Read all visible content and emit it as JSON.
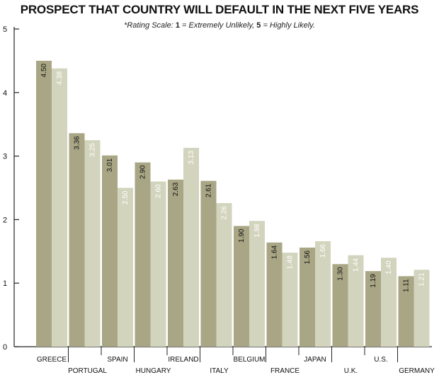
{
  "chart_data": {
    "type": "bar",
    "title": "PROSPECT THAT COUNTRY WILL DEFAULT IN THE NEXT FIVE YEARS",
    "subtitle": {
      "prefix": "*Rating Scale: ",
      "one": "1",
      "one_text": " = Extremely Unlikely, ",
      "five": "5",
      "five_text": " = Highly Likely."
    },
    "categories": [
      "GREECE",
      "PORTUGAL",
      "SPAIN",
      "HUNGARY",
      "IRELAND",
      "ITALY",
      "BELGIUM",
      "FRANCE",
      "JAPAN",
      "U.K.",
      "U.S.",
      "GERMANY"
    ],
    "series": [
      {
        "values": [
          4.5,
          3.36,
          3.01,
          2.9,
          2.63,
          2.61,
          1.9,
          1.64,
          1.56,
          1.3,
          1.19,
          1.11
        ]
      },
      {
        "values": [
          4.38,
          3.25,
          2.5,
          2.6,
          3.13,
          2.26,
          1.98,
          1.48,
          1.66,
          1.44,
          1.4,
          1.21
        ]
      }
    ],
    "data_labels": [
      [
        "4.50",
        "3.36",
        "3.01",
        "2.90",
        "2.63",
        "2.61",
        "1.90",
        "1.64",
        "1.56",
        "1.30",
        "1.19",
        "1.11"
      ],
      [
        "4.38",
        "3.25",
        "2.50",
        "2.60",
        "3.13",
        "2.26",
        "1.98",
        "1.48",
        "1.66",
        "1.44",
        "1.40",
        "1.21"
      ]
    ],
    "yticks": [
      "0",
      "1",
      "2",
      "3",
      "4",
      "5"
    ],
    "ylim": [
      0,
      5
    ],
    "grid": false,
    "colors": [
      "#a9a685",
      "#d3d4bd"
    ],
    "label_colors": [
      "#111111",
      "#ffffff"
    ]
  }
}
